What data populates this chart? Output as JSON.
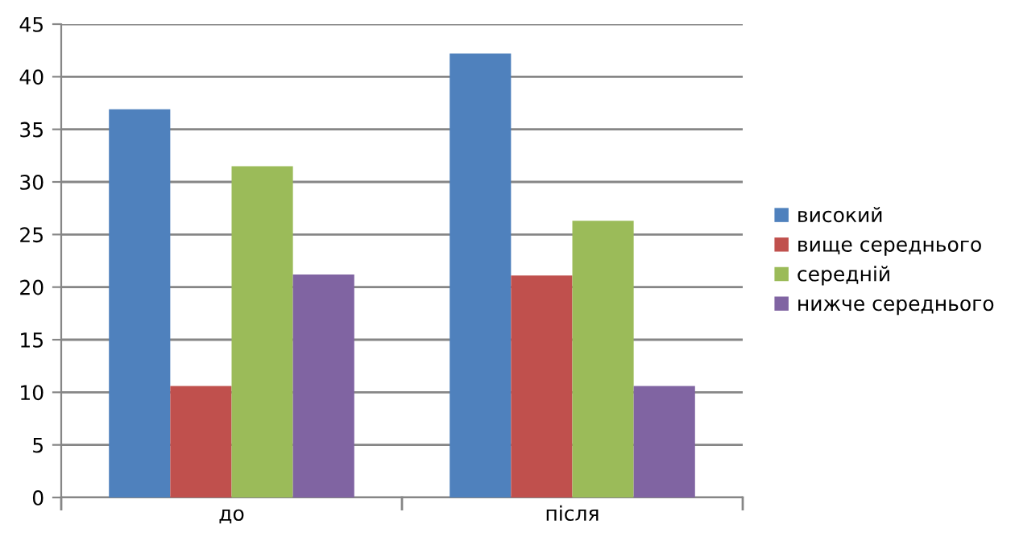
{
  "chart_data": {
    "type": "bar",
    "categories": [
      "до",
      "після"
    ],
    "series": [
      {
        "name": "високий",
        "color": "#4f81bd",
        "values": [
          36.9,
          42.2
        ]
      },
      {
        "name": "вище середнього",
        "color": "#c0504d",
        "values": [
          10.6,
          21.1
        ]
      },
      {
        "name": "середній",
        "color": "#9bbb59",
        "values": [
          31.5,
          26.3
        ]
      },
      {
        "name": "нижче середнього",
        "color": "#8064a2",
        "values": [
          21.2,
          10.6
        ]
      }
    ],
    "ylim": [
      0,
      45
    ],
    "yticks": [
      0,
      5,
      10,
      15,
      20,
      25,
      30,
      35,
      40,
      45
    ],
    "grid": "y",
    "legend": "right"
  }
}
